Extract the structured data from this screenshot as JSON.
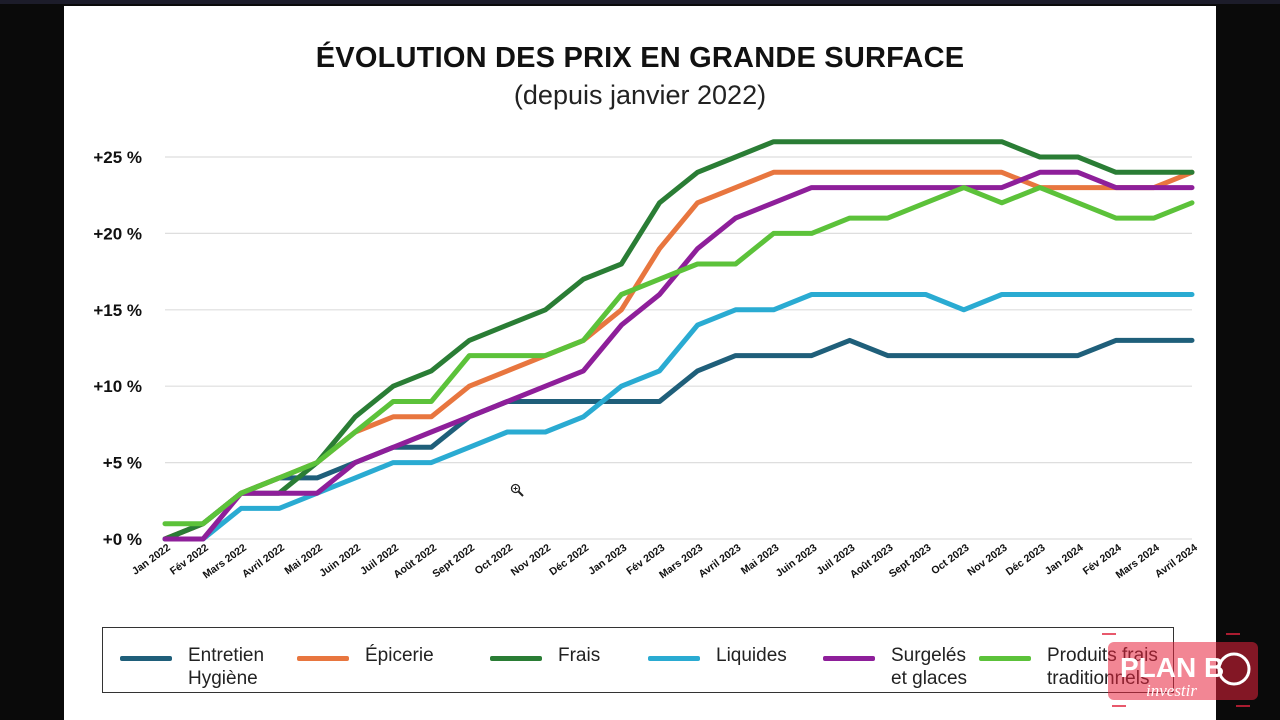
{
  "chart_data": {
    "type": "line",
    "title": "ÉVOLUTION DES PRIX EN GRANDE SURFACE",
    "subtitle": "(depuis janvier 2022)",
    "xlabel": "",
    "ylabel": "",
    "ylim": [
      0,
      25
    ],
    "yticks": [
      "+0 %",
      "+5 %",
      "+10 %",
      "+15 %",
      "+20 %",
      "+25 %"
    ],
    "ytick_values": [
      0,
      5,
      10,
      15,
      20,
      25
    ],
    "grid": "horizontal",
    "legend_position": "bottom",
    "categories": [
      "Jan 2022",
      "Fév 2022",
      "Mars 2022",
      "Avril 2022",
      "Mai 2022",
      "Juin 2022",
      "Juil 2022",
      "Août 2022",
      "Sept 2022",
      "Oct 2022",
      "Nov 2022",
      "Déc 2022",
      "Jan 2023",
      "Fév 2023",
      "Mars 2023",
      "Avril 2023",
      "Mai 2023",
      "Juin 2023",
      "Juil 2023",
      "Août 2023",
      "Sept 2023",
      "Oct 2023",
      "Nov 2023",
      "Déc 2023",
      "Jan 2024",
      "Fév 2024",
      "Mars 2024",
      "Avril 2024"
    ],
    "series": [
      {
        "name": "Entretien Hygiène",
        "legend_lines": [
          "Entretien",
          "Hygiène"
        ],
        "color": "#1f5f7a",
        "values": [
          0,
          1,
          3,
          4,
          4,
          5,
          6,
          6,
          8,
          9,
          9,
          9,
          9,
          9,
          11,
          12,
          12,
          12,
          13,
          12,
          12,
          12,
          12,
          12,
          12,
          13,
          13,
          13
        ]
      },
      {
        "name": "Épicerie",
        "legend_lines": [
          "Épicerie"
        ],
        "color": "#e8763f",
        "values": [
          0,
          1,
          3,
          4,
          5,
          7,
          8,
          8,
          10,
          11,
          12,
          13,
          15,
          19,
          22,
          23,
          24,
          24,
          24,
          24,
          24,
          24,
          24,
          23,
          23,
          23,
          23,
          24
        ]
      },
      {
        "name": "Frais",
        "legend_lines": [
          "Frais"
        ],
        "color": "#2a7d35",
        "values": [
          0,
          1,
          3,
          3,
          5,
          8,
          10,
          11,
          13,
          14,
          15,
          17,
          18,
          22,
          24,
          25,
          26,
          26,
          26,
          26,
          26,
          26,
          26,
          25,
          25,
          24,
          24,
          24
        ]
      },
      {
        "name": "Liquides",
        "legend_lines": [
          "Liquides"
        ],
        "color": "#2aabd2",
        "values": [
          0,
          0,
          2,
          2,
          3,
          4,
          5,
          5,
          6,
          7,
          7,
          8,
          10,
          11,
          14,
          15,
          15,
          16,
          16,
          16,
          16,
          15,
          16,
          16,
          16,
          16,
          16,
          16
        ]
      },
      {
        "name": "Surgelés et glaces",
        "legend_lines": [
          "Surgelés",
          "et glaces"
        ],
        "color": "#8e1f9a",
        "values": [
          0,
          0,
          3,
          3,
          3,
          5,
          6,
          7,
          8,
          9,
          10,
          11,
          14,
          16,
          19,
          21,
          22,
          23,
          23,
          23,
          23,
          23,
          23,
          24,
          24,
          23,
          23,
          23
        ]
      },
      {
        "name": "Produits frais traditionnels",
        "legend_lines": [
          "Produits frais",
          "traditionnels"
        ],
        "color": "#5cc23a",
        "values": [
          1,
          1,
          3,
          4,
          5,
          7,
          9,
          9,
          12,
          12,
          12,
          13,
          16,
          17,
          18,
          18,
          20,
          20,
          21,
          21,
          22,
          23,
          22,
          23,
          22,
          21,
          21,
          22
        ]
      }
    ]
  },
  "watermark": {
    "line1": "PLAN B",
    "line2": "investir"
  },
  "icons": {
    "cursor": "zoom-in-icon"
  }
}
